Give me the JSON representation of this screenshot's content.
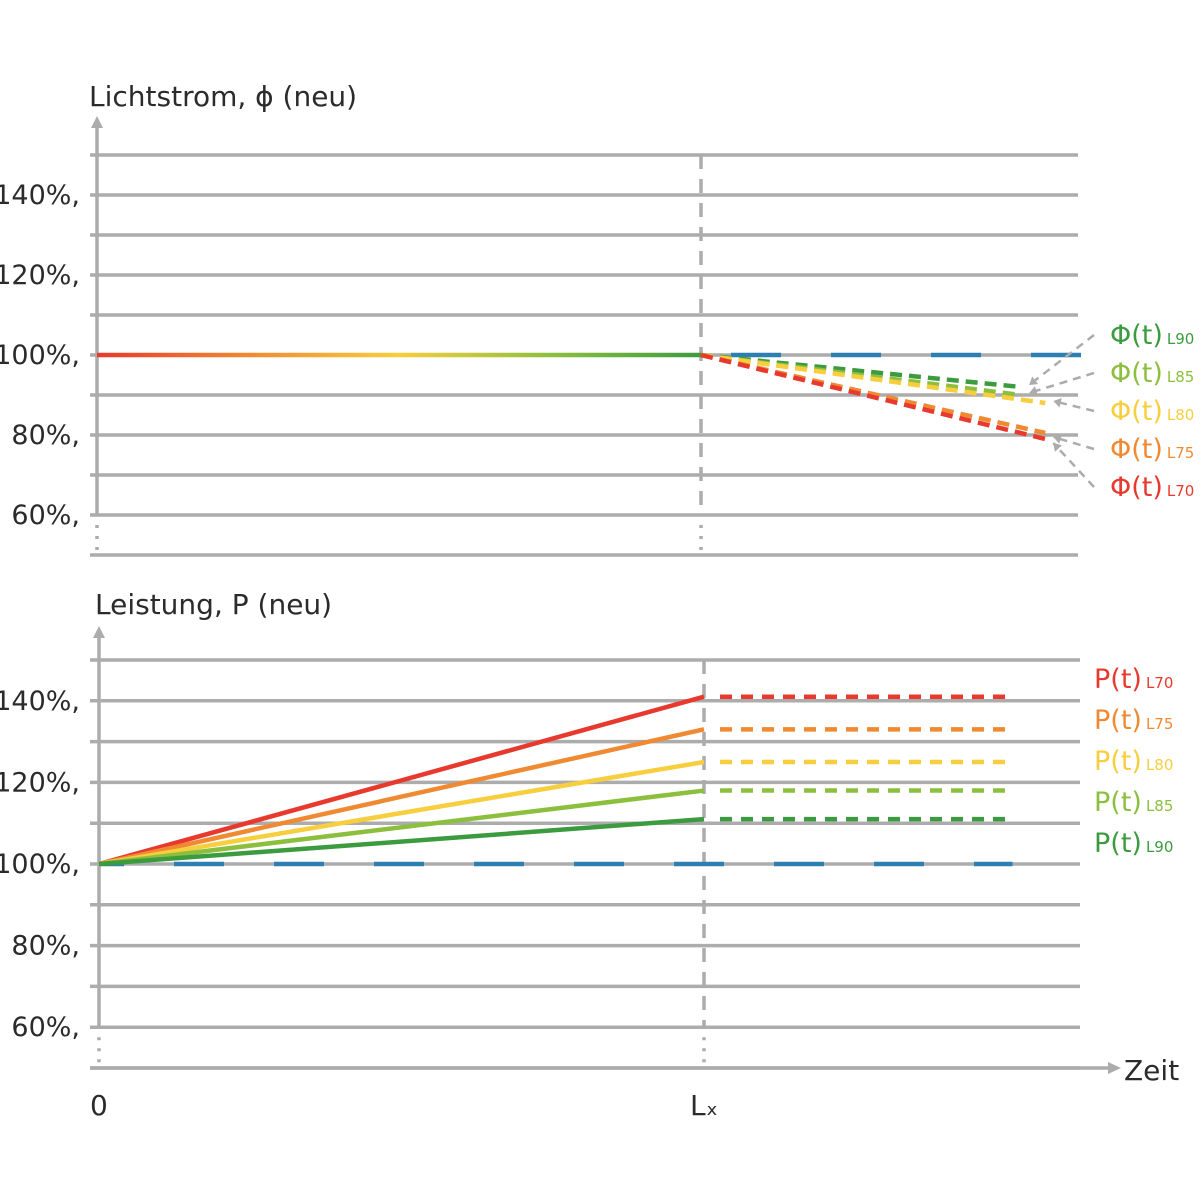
{
  "colors": {
    "L70": "#e8392e",
    "L75": "#ef8a32",
    "L80": "#f7ce3d",
    "L85": "#8dbf3e",
    "L90": "#3d9b3f",
    "reference": "#2c7fb0",
    "grid": "#acacac",
    "text": "#2b2b2b"
  },
  "x_axis": {
    "label": "Zeit",
    "ticks": [
      "0",
      "Lₓ"
    ]
  },
  "chart_data": [
    {
      "type": "line",
      "title": "Lichtstrom, ϕ (neu)",
      "ylabel": "Lichtstrom, ϕ (neu)",
      "xlabel": "Zeit",
      "x_ticks": [
        "0",
        "Lₓ"
      ],
      "y_ticks": [
        "140%,",
        "120%,",
        "100%,",
        "80%,",
        "60%,"
      ],
      "y_tick_values": [
        140,
        120,
        100,
        80,
        60
      ],
      "ylim": [
        50,
        150
      ],
      "x_domain": [
        0,
        1.66
      ],
      "grid": true,
      "legend_position": "right",
      "baseline": {
        "x": [
          0,
          1
        ],
        "y": [
          100,
          100
        ],
        "style": "gradient-solid"
      },
      "reference": {
        "x": [
          1,
          1.66
        ],
        "y": [
          100,
          100
        ],
        "style": "dashed"
      },
      "series": [
        {
          "name": "Φ(t)",
          "subscript": "L90",
          "key": "L90",
          "x": [
            1,
            1.53
          ],
          "y": [
            100,
            92
          ]
        },
        {
          "name": "Φ(t)",
          "subscript": "L85",
          "key": "L85",
          "x": [
            1,
            1.53
          ],
          "y": [
            100,
            90
          ]
        },
        {
          "name": "Φ(t)",
          "subscript": "L80",
          "key": "L80",
          "x": [
            1,
            1.57
          ],
          "y": [
            100,
            88
          ]
        },
        {
          "name": "Φ(t)",
          "subscript": "L75",
          "key": "L75",
          "x": [
            1,
            1.57
          ],
          "y": [
            100,
            80.5
          ]
        },
        {
          "name": "Φ(t)",
          "subscript": "L70",
          "key": "L70",
          "x": [
            1,
            1.57
          ],
          "y": [
            100,
            79
          ]
        }
      ]
    },
    {
      "type": "line",
      "title": "Leistung, P (neu)",
      "ylabel": "Leistung, P (neu)",
      "xlabel": "Zeit",
      "x_ticks": [
        "0",
        "Lₓ"
      ],
      "y_ticks": [
        "140%,",
        "120%,",
        "100%,",
        "80%,",
        "60%,"
      ],
      "y_tick_values": [
        140,
        120,
        100,
        80,
        60
      ],
      "ylim": [
        50,
        150
      ],
      "x_domain": [
        0,
        1.66
      ],
      "grid": true,
      "legend_position": "right",
      "reference": {
        "x": [
          0,
          1.51
        ],
        "y": [
          100,
          100
        ],
        "style": "dashed"
      },
      "series": [
        {
          "name": "P(t)",
          "subscript": "L70",
          "key": "L70",
          "x": [
            0,
            1,
            1.51
          ],
          "y": [
            100,
            141,
            141
          ]
        },
        {
          "name": "P(t)",
          "subscript": "L75",
          "key": "L75",
          "x": [
            0,
            1,
            1.51
          ],
          "y": [
            100,
            133,
            133
          ]
        },
        {
          "name": "P(t)",
          "subscript": "L80",
          "key": "L80",
          "x": [
            0,
            1,
            1.51
          ],
          "y": [
            100,
            125,
            125
          ]
        },
        {
          "name": "P(t)",
          "subscript": "L85",
          "key": "L85",
          "x": [
            0,
            1,
            1.51
          ],
          "y": [
            100,
            118,
            118
          ]
        },
        {
          "name": "P(t)",
          "subscript": "L90",
          "key": "L90",
          "x": [
            0,
            1,
            1.51
          ],
          "y": [
            100,
            111,
            111
          ]
        }
      ]
    }
  ]
}
